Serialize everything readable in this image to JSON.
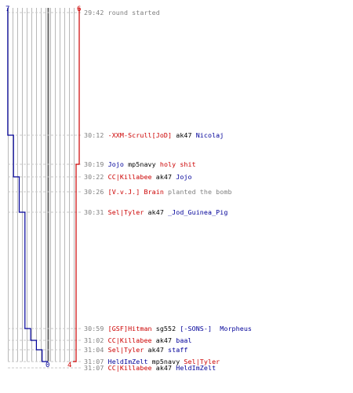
{
  "colors": {
    "team_red": "#cc0000",
    "team_blue": "#000099",
    "time": "#808080",
    "grid": "#b8b8b8",
    "center": "#666666"
  },
  "chart_data": {
    "type": "line",
    "blue_start": "7",
    "red_start": "6",
    "blue_end": "0",
    "red_end": "4",
    "blue_counts": [
      7,
      6,
      5,
      4,
      3,
      2,
      1,
      0
    ],
    "red_counts": [
      6,
      5,
      4
    ]
  },
  "log": [
    {
      "time": "29:42",
      "parts": [
        {
          "text": "round started",
          "style": "msg"
        }
      ]
    },
    {
      "time": "30:12",
      "parts": [
        {
          "text": "-XXM-Scrull[JoD]",
          "style": "red"
        },
        {
          "text": " ak47 ",
          "style": "plain"
        },
        {
          "text": "Nicolaj",
          "style": "blue"
        }
      ]
    },
    {
      "time": "30:19",
      "parts": [
        {
          "text": "Jojo",
          "style": "blue"
        },
        {
          "text": " mp5navy ",
          "style": "plain"
        },
        {
          "text": "holy shit",
          "style": "red"
        }
      ]
    },
    {
      "time": "30:22",
      "parts": [
        {
          "text": "CC|Killabee",
          "style": "red"
        },
        {
          "text": " ak47 ",
          "style": "plain"
        },
        {
          "text": "Jojo",
          "style": "blue"
        }
      ]
    },
    {
      "time": "30:26",
      "parts": [
        {
          "text": "[V.v.J.] Brain",
          "style": "red"
        },
        {
          "text": " planted the bomb",
          "style": "msg"
        }
      ]
    },
    {
      "time": "30:31",
      "parts": [
        {
          "text": "Sel|Tyler",
          "style": "red"
        },
        {
          "text": " ak47 ",
          "style": "plain"
        },
        {
          "text": "_Jod_Guinea_Pig",
          "style": "blue"
        }
      ]
    },
    {
      "time": "30:59",
      "parts": [
        {
          "text": "[GSF]Hitman",
          "style": "red"
        },
        {
          "text": " sg552 ",
          "style": "plain"
        },
        {
          "text": "[-SONS-]  Morpheus",
          "style": "blue"
        }
      ]
    },
    {
      "time": "31:02",
      "parts": [
        {
          "text": "CC|Killabee",
          "style": "red"
        },
        {
          "text": " ak47 ",
          "style": "plain"
        },
        {
          "text": "baal",
          "style": "blue"
        }
      ]
    },
    {
      "time": "31:04",
      "parts": [
        {
          "text": "Sel|Tyler",
          "style": "red"
        },
        {
          "text": " ak47 ",
          "style": "plain"
        },
        {
          "text": "staff",
          "style": "blue"
        }
      ]
    },
    {
      "time": "31:07",
      "parts": [
        {
          "text": "HeldImZelt",
          "style": "blue"
        },
        {
          "text": " mp5navy ",
          "style": "plain"
        },
        {
          "text": "Sel|Tyler",
          "style": "red"
        }
      ]
    },
    {
      "time": "31:07",
      "parts": [
        {
          "text": "CC|Killabee",
          "style": "red"
        },
        {
          "text": " ak47 ",
          "style": "plain"
        },
        {
          "text": "HeldImZelt",
          "style": "blue"
        }
      ]
    }
  ]
}
